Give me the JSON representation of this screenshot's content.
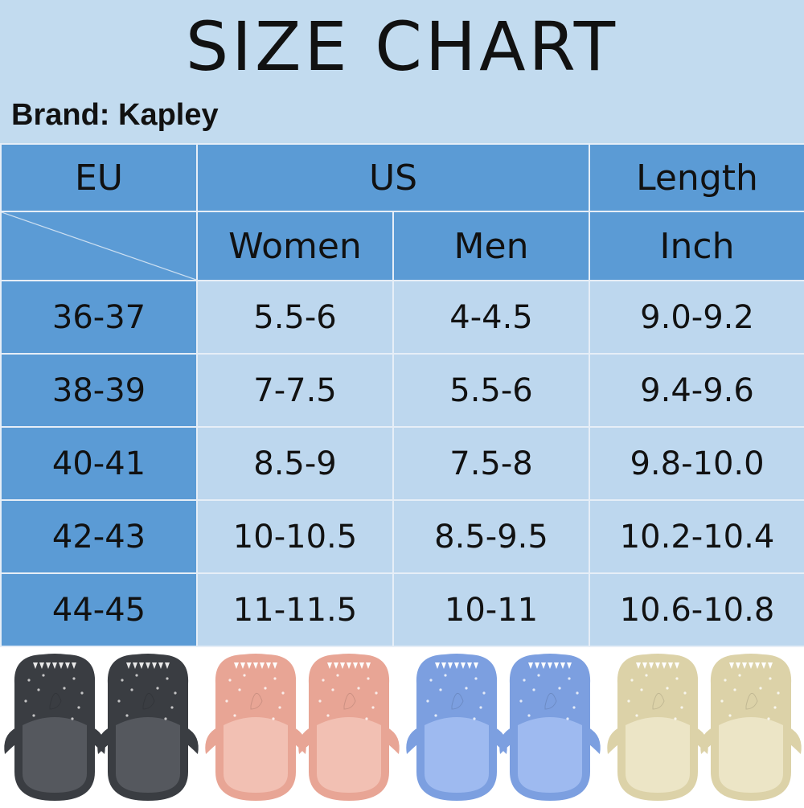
{
  "header": {
    "title": "SIZE CHART",
    "brand": "Brand: Kapley"
  },
  "table": {
    "columns": {
      "eu": "EU",
      "us": "US",
      "length": "Length",
      "women": "Women",
      "men": "Men",
      "inch": "Inch"
    },
    "rows": [
      {
        "eu": "36-37",
        "women": "5.5-6",
        "men": "4-4.5",
        "inch": "9.0-9.2"
      },
      {
        "eu": "38-39",
        "women": "7-7.5",
        "men": "5.5-6",
        "inch": "9.4-9.6"
      },
      {
        "eu": "40-41",
        "women": "8.5-9",
        "men": "7.5-8",
        "inch": "9.8-10.0"
      },
      {
        "eu": "42-43",
        "women": "10-10.5",
        "men": "8.5-9.5",
        "inch": "10.2-10.4"
      },
      {
        "eu": "44-45",
        "women": "11-11.5",
        "men": "10-11",
        "inch": "10.6-10.8"
      }
    ]
  },
  "colors": {
    "header_bg": "#c2dbef",
    "table_dark": "#5b9bd5",
    "table_light": "#bdd7ee"
  },
  "products": [
    {
      "name": "black-shark-slippers",
      "color": "#3a3d42",
      "inner": "#55585e",
      "dot": "#e8e8e8"
    },
    {
      "name": "pink-shark-slippers",
      "color": "#e8a595",
      "inner": "#f2c0b3",
      "dot": "#ffffff"
    },
    {
      "name": "blue-shark-slippers",
      "color": "#7c9fe0",
      "inner": "#9ebaf0",
      "dot": "#ffffff"
    },
    {
      "name": "beige-shark-slippers",
      "color": "#dcd2a8",
      "inner": "#ece5c6",
      "dot": "#ffffff"
    }
  ]
}
